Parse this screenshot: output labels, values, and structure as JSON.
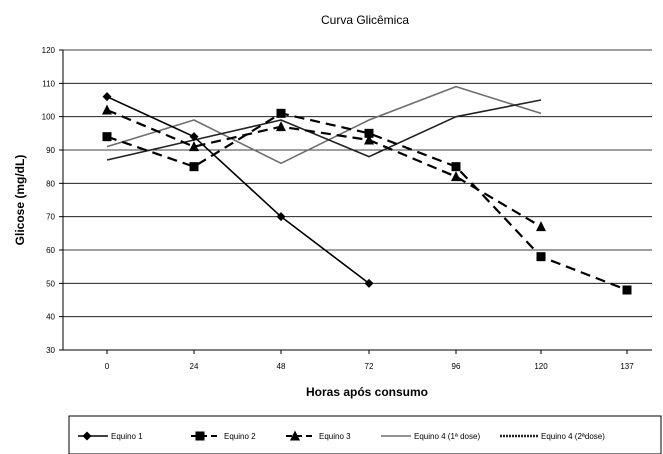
{
  "chart_data": {
    "type": "line",
    "title": "Curva Glicêmica",
    "xlabel": "Horas após consumo",
    "ylabel": "Glicose (mg/dL)",
    "categories": [
      "0",
      "24",
      "48",
      "72",
      "96",
      "120",
      "137"
    ],
    "ylim": [
      30,
      120
    ],
    "yticks": [
      "30",
      "40",
      "50",
      "60",
      "70",
      "80",
      "90",
      "100",
      "110",
      "120"
    ],
    "grid": true,
    "legend_position": "bottom",
    "series": [
      {
        "name": "Equino 1",
        "color": "#000000",
        "marker": "diamond",
        "dash": "solid",
        "values": [
          106,
          94,
          70,
          50,
          null,
          null,
          null
        ]
      },
      {
        "name": "Equino 2",
        "color": "#000000",
        "marker": "square",
        "dash": "dashed",
        "values": [
          94,
          85,
          101,
          95,
          85,
          58,
          48
        ]
      },
      {
        "name": "Equino 3",
        "color": "#000000",
        "marker": "triangle",
        "dash": "dashed",
        "values": [
          102,
          91,
          97,
          93,
          82,
          67,
          null
        ]
      },
      {
        "name": "Equino 4 (1ª dose)",
        "color": "#6e6e6e",
        "marker": "none",
        "dash": "solid",
        "values": [
          91,
          99,
          86,
          99,
          109,
          101,
          null
        ]
      },
      {
        "name": "Equino 4 (2ªdose)",
        "color": "#222222",
        "marker": "none",
        "dash": "solid",
        "values": [
          87,
          93,
          99,
          88,
          100,
          105,
          null
        ]
      }
    ]
  }
}
